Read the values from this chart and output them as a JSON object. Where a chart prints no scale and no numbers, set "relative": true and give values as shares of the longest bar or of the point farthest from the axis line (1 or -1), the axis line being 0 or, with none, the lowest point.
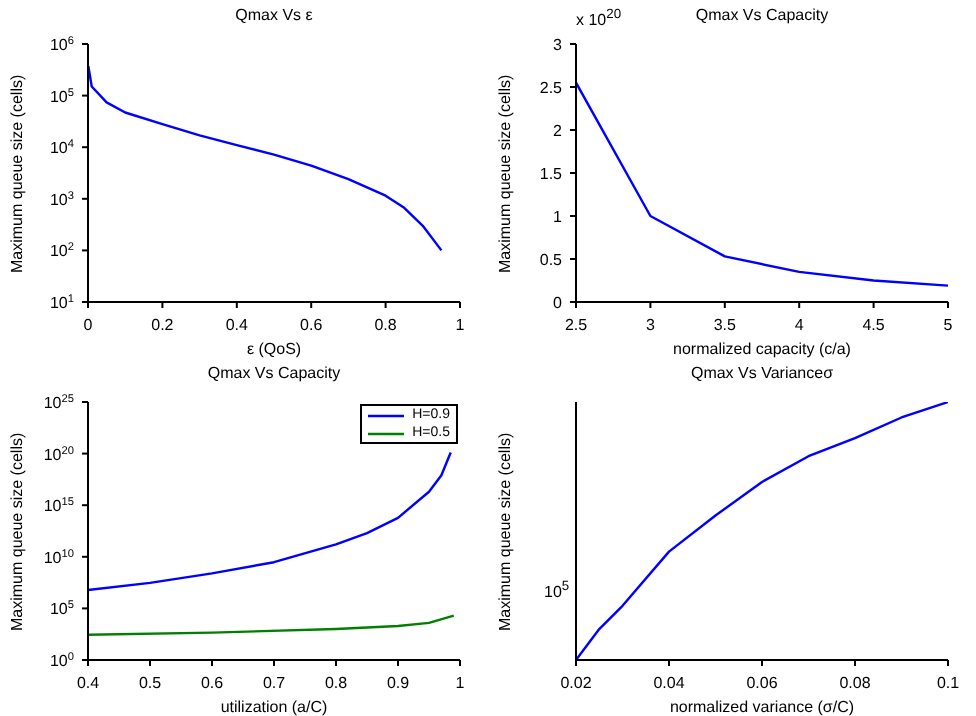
{
  "chart_data": [
    {
      "type": "line",
      "title": "Qmax Vs ε",
      "xlabel": "ε (QoS)",
      "ylabel": "Maximum queue size (cells)",
      "log": "y",
      "xlim": [
        0,
        1
      ],
      "xticks": [
        0,
        0.2,
        0.4,
        0.6,
        0.8,
        1
      ],
      "ylim": [
        10,
        1000000
      ],
      "yticks": [
        {
          "value": 10,
          "label": "10$^{1}$"
        },
        {
          "value": 100,
          "label": "10$^{2}$"
        },
        {
          "value": 1000,
          "label": "10$^{3}$"
        },
        {
          "value": 10000,
          "label": "10$^{4}$"
        },
        {
          "value": 100000,
          "label": "10$^{5}$"
        },
        {
          "value": 1000000,
          "label": "10$^{6}$"
        }
      ],
      "series": [
        {
          "color": "#0000ff",
          "x": [
            0.001,
            0.01,
            0.05,
            0.1,
            0.2,
            0.3,
            0.4,
            0.5,
            0.6,
            0.7,
            0.8,
            0.85,
            0.9,
            0.95
          ],
          "values": [
            370000,
            150000,
            74000,
            47000,
            28000,
            17000,
            11000,
            7200,
            4400,
            2400,
            1150,
            670,
            300,
            100
          ]
        }
      ]
    },
    {
      "type": "line",
      "title": "Qmax Vs Capacity",
      "xlabel": "normalized capacity (c/a)",
      "ylabel": "Maximum queue size (cells)",
      "annotations": [
        "x 10$^{20}$"
      ],
      "xlim": [
        2.5,
        5
      ],
      "xticks": [
        2.5,
        3,
        3.5,
        4,
        4.5,
        5
      ],
      "ylim": [
        0,
        3
      ],
      "yticks": [
        0,
        0.5,
        1,
        1.5,
        2,
        2.5,
        3
      ],
      "series": [
        {
          "color": "#0000ff",
          "x": [
            2.5,
            3,
            3.5,
            4,
            4.5,
            5
          ],
          "values": [
            2.55,
            1.0,
            0.53,
            0.35,
            0.25,
            0.19
          ]
        }
      ]
    },
    {
      "type": "line",
      "title": "Qmax Vs Capacity",
      "xlabel": "utilization (a/C)",
      "ylabel": "Maximum queue size (cells)",
      "log": "y",
      "legend": "top right",
      "xlim": [
        0.4,
        1
      ],
      "xticks": [
        0.4,
        0.5,
        0.6,
        0.7,
        0.8,
        0.9,
        1
      ],
      "ylim": [
        1,
        1e+25
      ],
      "yticks": [
        {
          "value": 1,
          "label": "10$^{0}$"
        },
        {
          "value": 100000,
          "label": "10$^{5}$"
        },
        {
          "value": 10000000000.0,
          "label": "10$^{10}$"
        },
        {
          "value": 1000000000000000.0,
          "label": "10$^{15}$"
        },
        {
          "value": 1e+20,
          "label": "10$^{20}$"
        },
        {
          "value": 1e+25,
          "label": "10$^{25}$"
        }
      ],
      "series": [
        {
          "name": "H=0.9",
          "color": "#0000ff",
          "x": [
            0.4,
            0.5,
            0.6,
            0.7,
            0.8,
            0.85,
            0.9,
            0.95,
            0.97,
            0.985
          ],
          "values": [
            6000000,
            30000000,
            250000000,
            3000000000,
            160000000000,
            2000000000000,
            60000000000000,
            20000000000000000,
            800000000000000000,
            130000000000000000000
          ]
        },
        {
          "name": "H=0.5",
          "color": "#008000",
          "x": [
            0.4,
            0.6,
            0.8,
            0.9,
            0.95,
            0.99
          ],
          "values": [
            280,
            450,
            1000,
            2000,
            4000,
            20000
          ]
        }
      ]
    },
    {
      "type": "line",
      "title": "Qmax Vs Varianceσ",
      "xlabel": "normalized variance (σ/C)",
      "ylabel": "Maximum queue size (cells)",
      "relative": true,
      "annotations": [
        "10$^{5}$"
      ],
      "xlim": [
        0.02,
        0.1
      ],
      "xticks": [
        0.02,
        0.04,
        0.06,
        0.08,
        0.1
      ],
      "series": [
        {
          "color": "#0000ff",
          "x": [
            0.02,
            0.025,
            0.03,
            0.04,
            0.05,
            0.06,
            0.07,
            0.08,
            0.09,
            0.1
          ],
          "values": [
            0,
            0.12,
            0.21,
            0.42,
            0.56,
            0.69,
            0.79,
            0.86,
            0.94,
            1
          ]
        }
      ]
    }
  ]
}
